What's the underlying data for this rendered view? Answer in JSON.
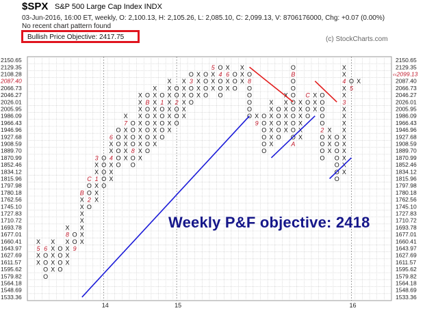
{
  "header": {
    "symbol": "$SPX",
    "name": "S&P 500 Large Cap Index  INDX",
    "quote_line": "03-Jun-2016, 16:00 ET, weekly, O: 2,100.13, H: 2,105.26, L: 2,085.10, C: 2,099.13, V: 8706176000, Chg: +0.07 (0.00%)",
    "pattern_note": "No recent chart pattern found",
    "objective_label": "Bullish Price Objective: 2417.75",
    "credit": "(c) StockCharts.com"
  },
  "annotation": "Weekly P&F objective: 2418",
  "colors": {
    "grid": "#c8c8c8",
    "marks": "#111111",
    "month_digits": "#c0182a",
    "trend_up": "#1a1ad8",
    "trend_down": "#e21b1b",
    "objective_box": "#e0141e",
    "annotation": "#16178a"
  },
  "chart_data": {
    "type": "point_and_figure",
    "title": "$SPX",
    "box_levels": [
      "2150.65",
      "2129.35",
      "2108.28",
      "2087.40",
      "2066.73",
      "2046.27",
      "2026.01",
      "2005.95",
      "1986.09",
      "1966.43",
      "1946.96",
      "1927.68",
      "1908.59",
      "1889.70",
      "1870.99",
      "1852.46",
      "1834.12",
      "1815.96",
      "1797.98",
      "1780.18",
      "1762.56",
      "1745.10",
      "1727.83",
      "1710.72",
      "1693.78",
      "1677.01",
      "1660.41",
      "1643.97",
      "1627.69",
      "1611.57",
      "1595.62",
      "1579.82",
      "1564.18",
      "1548.69",
      "1533.36"
    ],
    "left_axis_highlight": "2087.40",
    "right_axis_highlight": "2099.13",
    "x_ticks": [
      {
        "label": "14",
        "column": 9
      },
      {
        "label": "15",
        "column": 19
      },
      {
        "label": "16",
        "column": 43
      }
    ],
    "columns": [
      {
        "col": 0,
        "type": "X",
        "from": 1611.57,
        "to": 1660.41,
        "marks": {
          "1643.97": "5"
        }
      },
      {
        "col": 1,
        "type": "O",
        "from": 1579.82,
        "to": 1643.97,
        "marks": {
          "1643.97": "6"
        }
      },
      {
        "col": 2,
        "type": "X",
        "from": 1595.62,
        "to": 1660.41
      },
      {
        "col": 3,
        "type": "O",
        "from": 1595.62,
        "to": 1643.97
      },
      {
        "col": 4,
        "type": "X",
        "from": 1611.57,
        "to": 1693.78,
        "marks": {
          "1677.01": "8"
        }
      },
      {
        "col": 5,
        "type": "O",
        "from": 1643.97,
        "to": 1677.01,
        "marks": {
          "1643.97": "9"
        }
      },
      {
        "col": 6,
        "type": "X",
        "from": 1660.41,
        "to": 1780.18,
        "marks": {
          "1780.18": "B"
        }
      },
      {
        "col": 7,
        "type": "O",
        "from": 1745.1,
        "to": 1815.96,
        "marks": {
          "1815.96": "C",
          "1762.56": "2"
        }
      },
      {
        "col": 8,
        "type": "X",
        "from": 1762.56,
        "to": 1870.99,
        "marks": {
          "1815.96": "1",
          "1870.99": "3"
        }
      },
      {
        "col": 9,
        "type": "O",
        "from": 1797.98,
        "to": 1870.99
      },
      {
        "col": 10,
        "type": "X",
        "from": 1815.96,
        "to": 1927.68,
        "marks": {
          "1870.99": "4",
          "1927.68": "6"
        }
      },
      {
        "col": 11,
        "type": "O",
        "from": 1852.46,
        "to": 1946.96
      },
      {
        "col": 12,
        "type": "X",
        "from": 1870.99,
        "to": 1986.09,
        "marks": {
          "1966.43": "7"
        }
      },
      {
        "col": 13,
        "type": "O",
        "from": 1852.46,
        "to": 1966.43,
        "marks": {
          "1889.70": "8"
        }
      },
      {
        "col": 14,
        "type": "X",
        "from": 1870.99,
        "to": 2046.27
      },
      {
        "col": 15,
        "type": "O",
        "from": 1889.7,
        "to": 2046.27,
        "marks": {
          "2026.01": "B"
        }
      },
      {
        "col": 16,
        "type": "X",
        "from": 1908.59,
        "to": 2066.73
      },
      {
        "col": 17,
        "type": "O",
        "from": 1927.68,
        "to": 2046.27,
        "marks": {
          "2026.01": "1"
        }
      },
      {
        "col": 18,
        "type": "X",
        "from": 1946.96,
        "to": 2087.4
      },
      {
        "col": 19,
        "type": "O",
        "from": 1966.43,
        "to": 2066.73,
        "marks": {
          "2026.01": "2"
        }
      },
      {
        "col": 20,
        "type": "X",
        "from": 1986.09,
        "to": 2087.4
      },
      {
        "col": 21,
        "type": "O",
        "from": 2026.01,
        "to": 2108.28,
        "marks": {
          "2087.40": "3"
        }
      },
      {
        "col": 22,
        "type": "X",
        "from": 2046.27,
        "to": 2108.28
      },
      {
        "col": 23,
        "type": "O",
        "from": 2046.27,
        "to": 2108.28
      },
      {
        "col": 24,
        "type": "X",
        "from": 2066.73,
        "to": 2129.35,
        "marks": {
          "2129.35": "5"
        }
      },
      {
        "col": 25,
        "type": "O",
        "from": 2046.27,
        "to": 2129.35,
        "marks": {
          "2108.28": "4"
        }
      },
      {
        "col": 26,
        "type": "X",
        "from": 2066.73,
        "to": 2129.35,
        "marks": {
          "2108.28": "6"
        }
      },
      {
        "col": 27,
        "type": "O",
        "from": 2066.73,
        "to": 2108.28
      },
      {
        "col": 28,
        "type": "X",
        "from": 2087.4,
        "to": 2129.35
      },
      {
        "col": 29,
        "type": "O",
        "from": 1986.09,
        "to": 2108.28,
        "marks": {
          "2087.40": "8"
        }
      },
      {
        "col": 30,
        "type": "X",
        "from": 1966.43,
        "to": 1986.09,
        "marks": {
          "1966.43": "9"
        }
      },
      {
        "col": 31,
        "type": "O",
        "from": 1889.7,
        "to": 1986.09
      },
      {
        "col": 32,
        "type": "X",
        "from": 1908.59,
        "to": 2026.01
      },
      {
        "col": 33,
        "type": "O",
        "from": 1927.68,
        "to": 2005.95
      },
      {
        "col": 34,
        "type": "X",
        "from": 1946.96,
        "to": 2046.27
      },
      {
        "col": 35,
        "type": "O",
        "from": 1908.59,
        "to": 2129.35,
        "marks": {
          "2108.28": "B",
          "1908.59": "A"
        }
      },
      {
        "col": 36,
        "type": "X",
        "from": 1927.68,
        "to": 2026.01
      },
      {
        "col": 37,
        "type": "O",
        "from": 1986.09,
        "to": 2046.27,
        "marks": {
          "2046.27": "C"
        }
      },
      {
        "col": 38,
        "type": "X",
        "from": 2005.95,
        "to": 2046.27
      },
      {
        "col": 39,
        "type": "O",
        "from": 1870.99,
        "to": 2046.27,
        "marks": {
          "1946.96": "2"
        }
      },
      {
        "col": 40,
        "type": "X",
        "from": 1889.7,
        "to": 1946.96
      },
      {
        "col": 41,
        "type": "O",
        "from": 1815.96,
        "to": 1927.68
      },
      {
        "col": 42,
        "type": "X",
        "from": 1834.12,
        "to": 2129.35,
        "marks": {
          "2087.40": "4",
          "2026.01": "3"
        }
      },
      {
        "col": 43,
        "type": "O",
        "from": 2066.73,
        "to": 2087.4,
        "marks": {
          "2066.73": "5"
        }
      },
      {
        "col": 44,
        "type": "X",
        "from": 2087.4,
        "to": 2087.4
      }
    ],
    "trendlines": [
      {
        "kind": "support",
        "from": {
          "col": 6,
          "level": "1533.36"
        },
        "to": {
          "col": 29,
          "level": "1986.09"
        }
      },
      {
        "kind": "support",
        "from": {
          "col": 32,
          "level": "1870.99"
        },
        "to": {
          "col": 38,
          "level": "1986.09"
        }
      },
      {
        "kind": "support",
        "from": {
          "col": 40,
          "level": "1815.96"
        },
        "to": {
          "col": 43,
          "level": "1870.99"
        }
      },
      {
        "kind": "resistance",
        "from": {
          "col": 29,
          "level": "2129.35"
        },
        "to": {
          "col": 35,
          "level": "2026.01"
        }
      },
      {
        "kind": "resistance",
        "from": {
          "col": 38,
          "level": "2087.40"
        },
        "to": {
          "col": 41,
          "level": "2026.01"
        }
      }
    ]
  }
}
